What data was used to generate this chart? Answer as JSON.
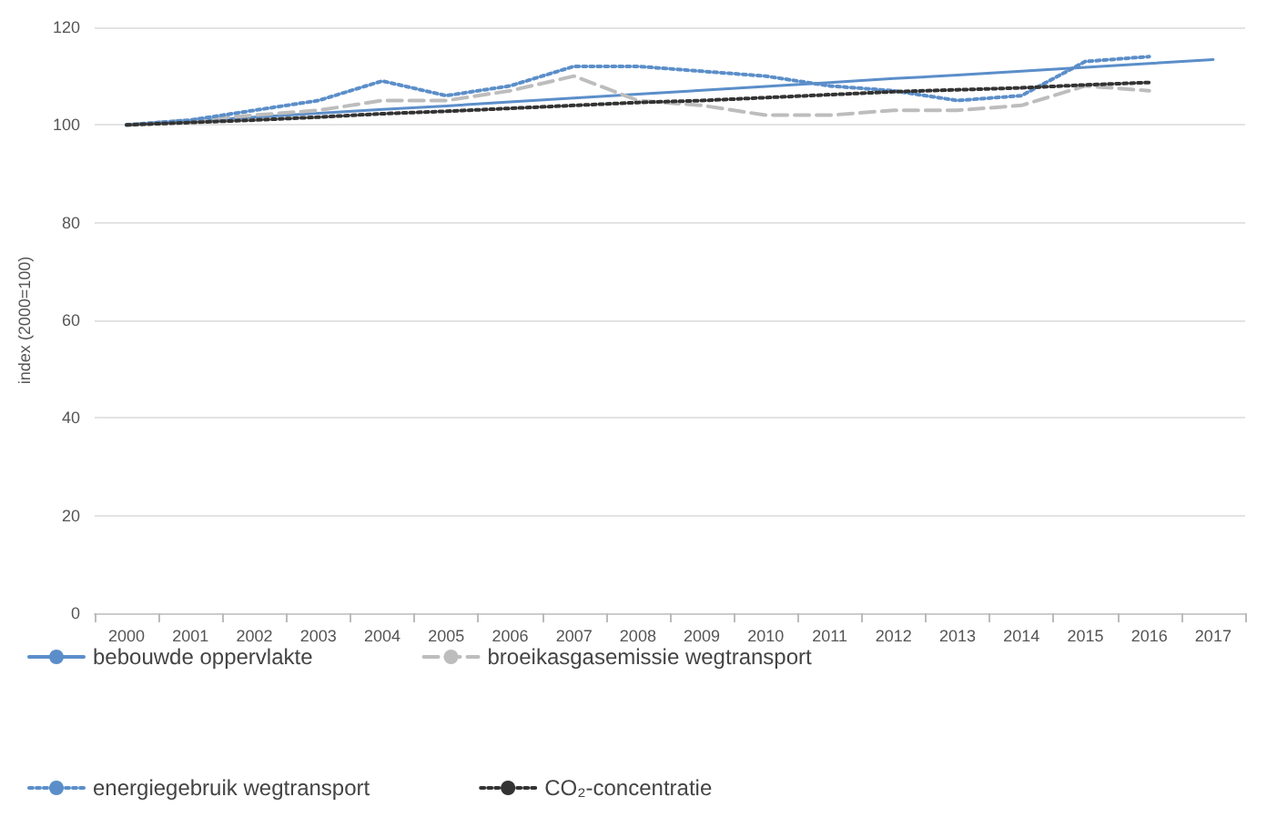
{
  "chart_data": {
    "type": "line",
    "ylabel": "index (2000=100)",
    "categories": [
      "2000",
      "2001",
      "2002",
      "2003",
      "2004",
      "2005",
      "2006",
      "2007",
      "2008",
      "2009",
      "2010",
      "2011",
      "2012",
      "2013",
      "2014",
      "2015",
      "2016",
      "2017"
    ],
    "series": [
      {
        "name": "bebouwde oppervlakte",
        "color": "#5b8ec9",
        "line_style": "solid",
        "values": [
          100,
          100.8,
          101.6,
          102.4,
          103.2,
          103.9,
          104.7,
          105.5,
          106.3,
          107.1,
          107.9,
          108.7,
          109.5,
          110.2,
          111,
          111.8,
          112.6,
          113.4
        ]
      },
      {
        "name": "broeikasgasemissie wegtransport",
        "color": "#bdbdbd",
        "line_style": "dashed",
        "values": [
          100,
          101,
          102,
          103,
          105,
          105,
          107,
          110,
          105,
          104,
          102,
          102,
          103,
          103,
          104,
          108,
          107,
          null
        ]
      },
      {
        "name": "energiegebruik wegtransport",
        "color": "#5b8ec9",
        "line_style": "dotted",
        "values": [
          100,
          101,
          103,
          105,
          109,
          106,
          108,
          112,
          112,
          111,
          110,
          108,
          107,
          105,
          106,
          113,
          114,
          null
        ]
      },
      {
        "name": "CO₂-concentratie",
        "color": "#333333",
        "line_style": "dotted",
        "values": [
          100,
          100.5,
          101,
          101.6,
          102.3,
          102.8,
          103.4,
          104,
          104.6,
          105,
          105.6,
          106.2,
          106.8,
          107.2,
          107.6,
          108.2,
          108.7,
          null
        ]
      }
    ],
    "ylim": [
      0,
      120
    ],
    "yticks": [
      0,
      20,
      40,
      60,
      80,
      100,
      120
    ],
    "grid": "y",
    "legend": "bottom",
    "marker": "none"
  }
}
